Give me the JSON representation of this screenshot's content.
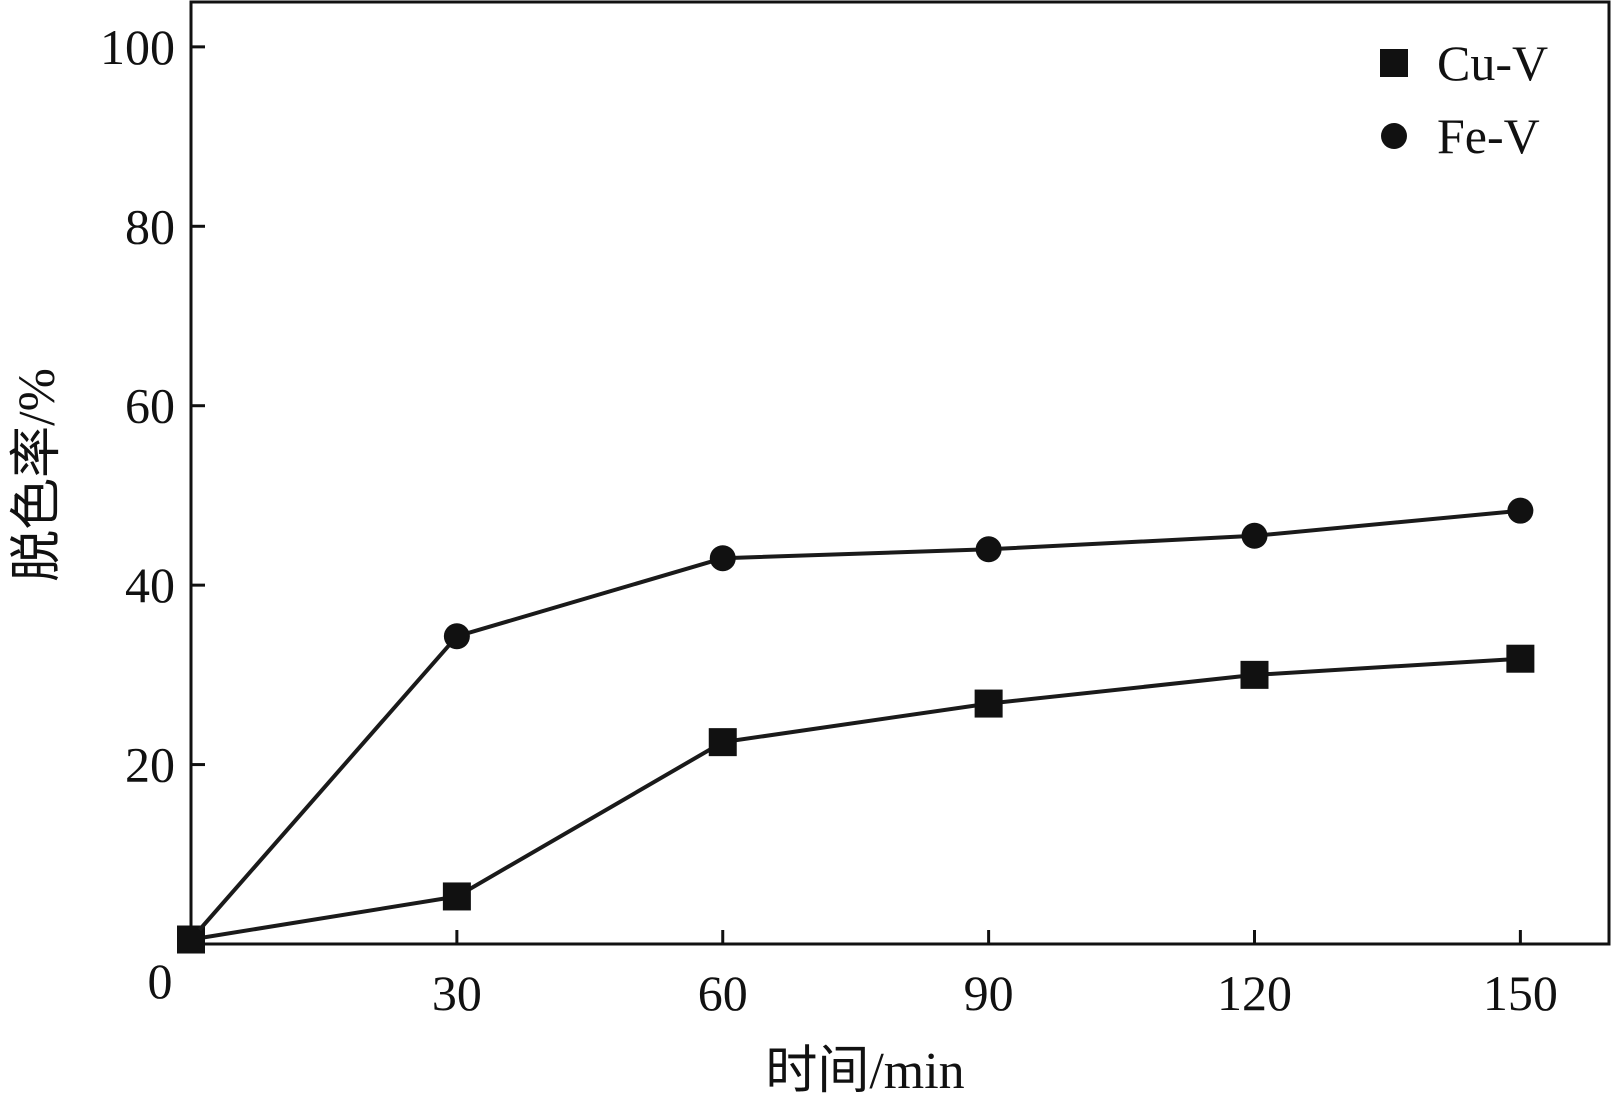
{
  "chart_data": {
    "type": "line",
    "xlabel": "时间/min",
    "ylabel": "脱色率/%",
    "x": [
      0,
      30,
      60,
      90,
      120,
      150
    ],
    "x_ticks": [
      30,
      60,
      90,
      120,
      150
    ],
    "y_ticks": [
      20,
      40,
      60,
      80,
      100
    ],
    "origin_label": "0",
    "xlim": [
      0,
      160
    ],
    "ylim": [
      0,
      105
    ],
    "grid": false,
    "legend_position": "top-right",
    "series": [
      {
        "name": "Cu-V",
        "marker": "square",
        "values": [
          0.5,
          5.3,
          22.5,
          26.8,
          30.0,
          31.8
        ]
      },
      {
        "name": "Fe-V",
        "marker": "circle",
        "values": [
          0.5,
          34.3,
          43.0,
          44.0,
          45.5,
          48.3
        ]
      }
    ],
    "colors": {
      "line": "#1a1a1a",
      "marker": "#111111",
      "axis": "#111111"
    }
  }
}
